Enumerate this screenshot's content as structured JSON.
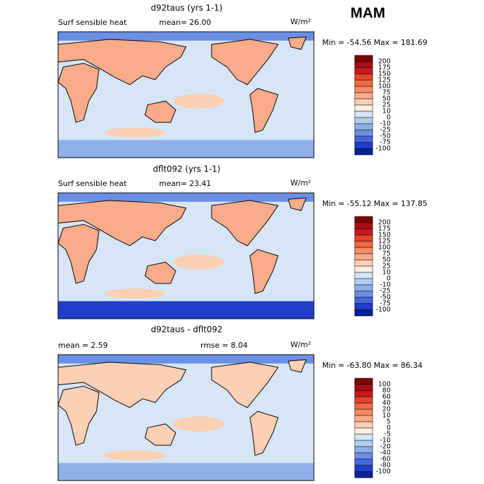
{
  "season": "MAM",
  "panels": [
    {
      "title": "d92taus (yrs 1-1)",
      "variable": "Surf sensible heat",
      "stats": [
        "mean=  26.00"
      ],
      "unit": "W/m²",
      "range": "Min = -54.56 Max = 181.69",
      "colorbar": {
        "labels": [
          "200",
          "175",
          "150",
          "125",
          "100",
          "75",
          "50",
          "25",
          "10",
          "0",
          "-10",
          "-25",
          "-50",
          "-75",
          "-100"
        ],
        "colors": [
          "#7a0403",
          "#a50f15",
          "#cb181d",
          "#e2442d",
          "#ef6a45",
          "#f58c64",
          "#f9ac8a",
          "#fcd0b4",
          "#fdeee2",
          "#d6e6f7",
          "#b3cdf0",
          "#8fb0ea",
          "#6a8fe4",
          "#4568dc",
          "#1f3fc8",
          "#08209a"
        ]
      }
    },
    {
      "title": "dflt092 (yrs 1-1)",
      "variable": "Surf sensible heat",
      "stats": [
        "mean=  23.41"
      ],
      "unit": "W/m²",
      "range": "Min = -55.12 Max = 137.85",
      "colorbar": {
        "labels": [
          "200",
          "175",
          "150",
          "125",
          "100",
          "75",
          "50",
          "25",
          "10",
          "0",
          "-10",
          "-25",
          "-50",
          "-75",
          "-100"
        ],
        "colors": [
          "#7a0403",
          "#a50f15",
          "#cb181d",
          "#e2442d",
          "#ef6a45",
          "#f58c64",
          "#f9ac8a",
          "#fcd0b4",
          "#fdeee2",
          "#d6e6f7",
          "#b3cdf0",
          "#8fb0ea",
          "#6a8fe4",
          "#4568dc",
          "#1f3fc8",
          "#08209a"
        ]
      }
    },
    {
      "title": "d92taus - dflt092",
      "stats": [
        "mean =   2.59",
        "rmse =   8.04"
      ],
      "unit": "W/m²",
      "range": "Min = -63.80 Max =  86.34",
      "colorbar": {
        "labels": [
          "100",
          "80",
          "60",
          "40",
          "20",
          "10",
          "5",
          "0",
          "-5",
          "-10",
          "-20",
          "-40",
          "-60",
          "-80",
          "-100"
        ],
        "colors": [
          "#7a0403",
          "#a50f15",
          "#cb181d",
          "#e2442d",
          "#ef6a45",
          "#f58c64",
          "#f9ac8a",
          "#fcd0b4",
          "#fdeee2",
          "#d6e6f7",
          "#b3cdf0",
          "#8fb0ea",
          "#6a8fe4",
          "#4568dc",
          "#1f3fc8",
          "#08209a"
        ]
      }
    }
  ]
}
